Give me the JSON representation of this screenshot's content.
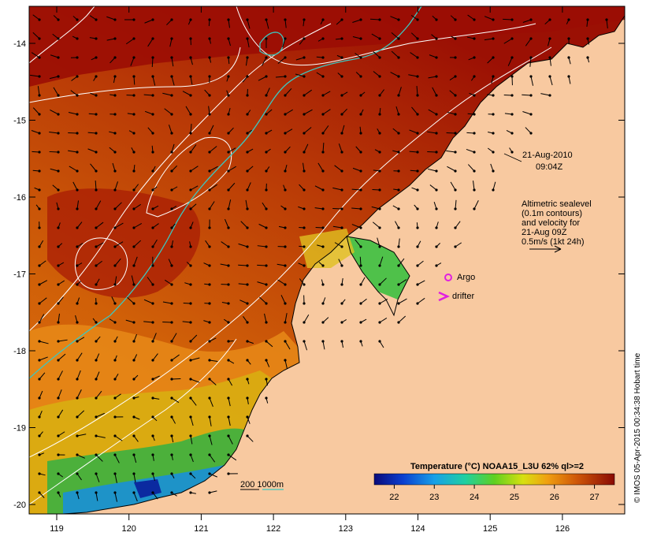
{
  "map": {
    "date": "21-Aug-2010",
    "time": "09:04Z",
    "info_lines": [
      "Altimetric sealevel",
      "(0.1m contours)",
      "and velocity for",
      "21-Aug 09Z",
      "0.5m/s (1kt 24h)"
    ],
    "legend_argo": "Argo",
    "legend_drifter": "drifter",
    "bathy_label": "200  1000m",
    "colorbar_title": "Temperature (°C) NOAA15_L3U 62% ql>=2",
    "colorbar_ticks": [
      "22",
      "23",
      "24",
      "25",
      "26",
      "27"
    ],
    "colorbar_range": [
      21.5,
      27.5
    ],
    "credit": "© IMOS 05-Apr-2015 00:34:38 Hobart time",
    "lon_ticks": [
      "119",
      "120",
      "121",
      "122",
      "123",
      "124",
      "125",
      "126"
    ],
    "lat_ticks": [
      "-14",
      "-15",
      "-16",
      "-17",
      "-18",
      "-19",
      "-20"
    ],
    "colors": {
      "land": "#f8c9a0",
      "sea_warm": "#9b0d04",
      "sea_mid": "#c85a06",
      "sea_cool": "#1b8c2e",
      "contour": "#ffffff",
      "bathy_line": "#3cc7c0",
      "argo": "#e020e0",
      "drifter": "#e020e0",
      "arrow": "#000000"
    }
  }
}
